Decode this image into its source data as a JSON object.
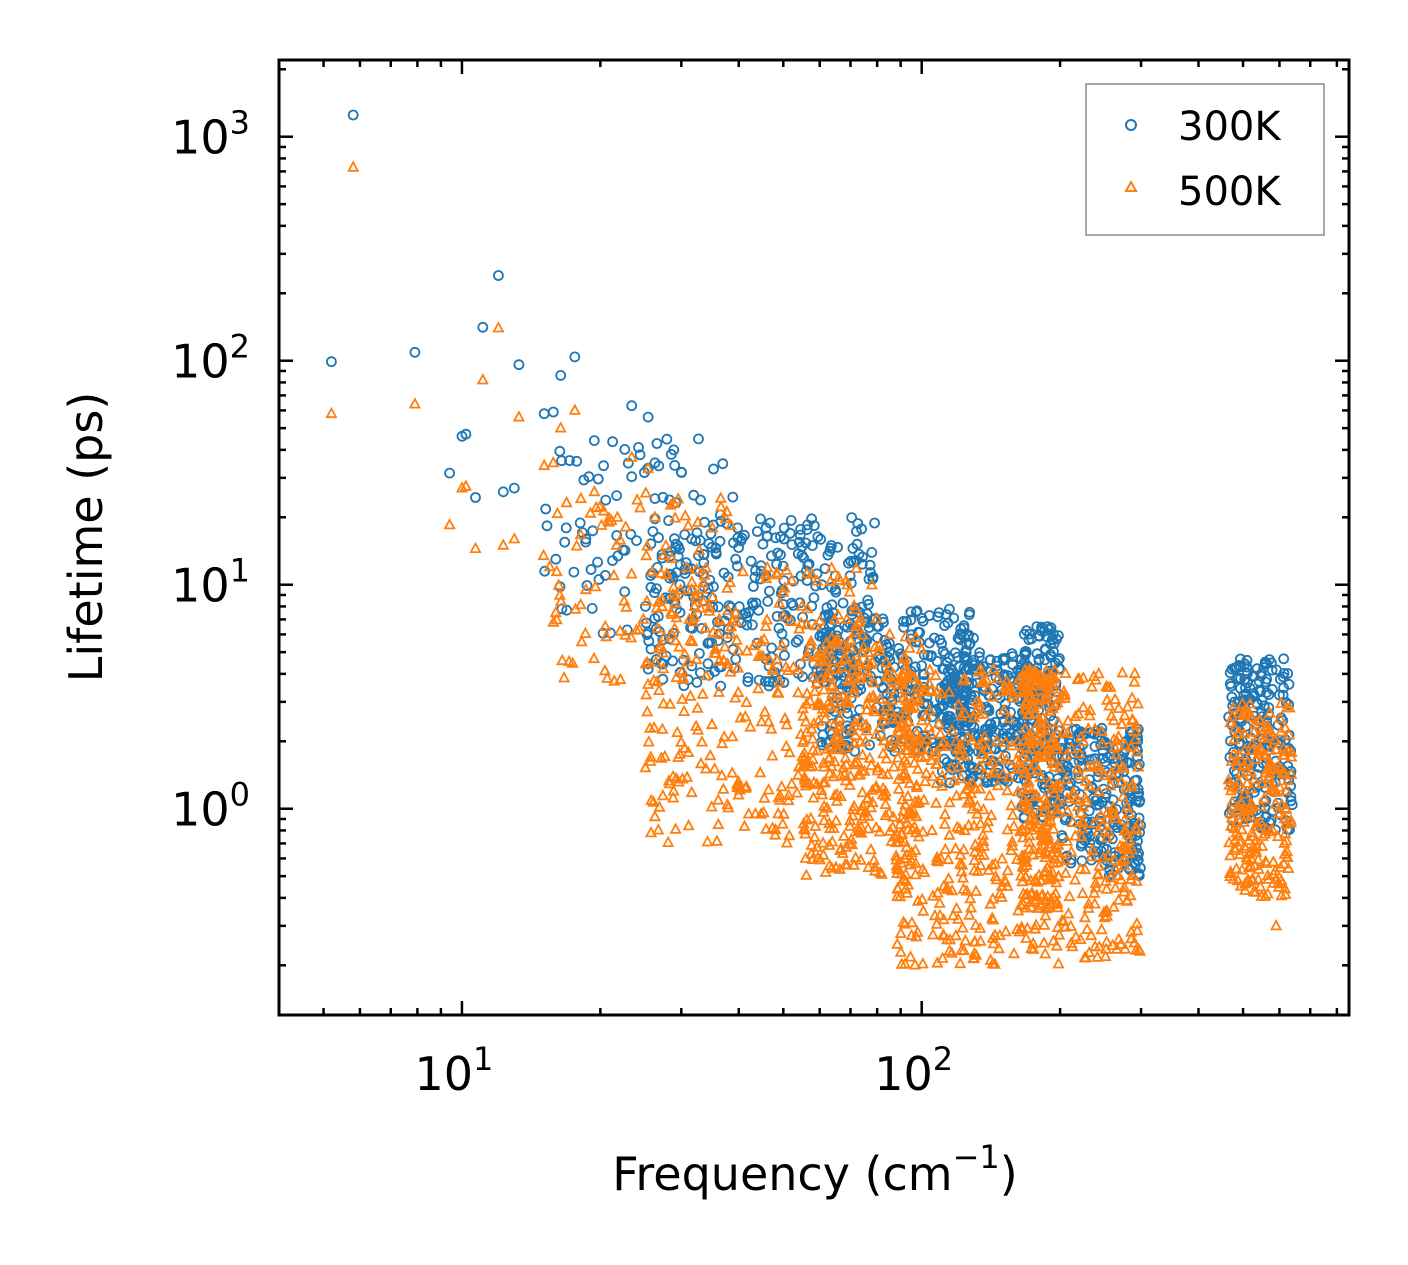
{
  "chart_data": {
    "type": "scatter",
    "title": "",
    "xlabel": "Frequency (cm",
    "xlabel_sup": "−1",
    "xlabel_end": ")",
    "ylabel": "Lifetime (ps)",
    "xscale": "log",
    "yscale": "log",
    "xlim": [
      4,
      850
    ],
    "ylim": [
      0.12,
      2200
    ],
    "x_ticks": [
      {
        "value": 10,
        "base": "10",
        "exp": "1"
      },
      {
        "value": 100,
        "base": "10",
        "exp": "2"
      }
    ],
    "y_ticks": [
      {
        "value": 1,
        "base": "10",
        "exp": "0"
      },
      {
        "value": 10,
        "base": "10",
        "exp": "1"
      },
      {
        "value": 100,
        "base": "10",
        "exp": "2"
      },
      {
        "value": 1000,
        "base": "10",
        "exp": "3"
      }
    ],
    "legend_position": "top-right",
    "series": [
      {
        "name": "300K",
        "marker": "circle",
        "color": "#1f77b4",
        "points": [
          [
            5.2,
            99
          ],
          [
            5.8,
            1250
          ],
          [
            7.9,
            109
          ],
          [
            9.4,
            31.5
          ],
          [
            10.0,
            46
          ],
          [
            10.2,
            47
          ],
          [
            10.7,
            24.5
          ],
          [
            11.1,
            141
          ],
          [
            12.0,
            240
          ],
          [
            12.3,
            26
          ],
          [
            13.0,
            27
          ],
          [
            13.3,
            96
          ],
          [
            15.1,
            58
          ],
          [
            15.8,
            59
          ],
          [
            16.0,
            13
          ],
          [
            16.4,
            86
          ],
          [
            17.6,
            104
          ],
          [
            18.6,
            16
          ],
          [
            19.4,
            44
          ],
          [
            20.5,
            11
          ],
          [
            21.7,
            25
          ],
          [
            23.4,
            63
          ],
          [
            24.4,
            38
          ],
          [
            25.4,
            56
          ],
          [
            26.3,
            35
          ],
          [
            28.9,
            40
          ],
          [
            31.6,
            16
          ],
          [
            33.7,
            19
          ],
          [
            39.4,
            13
          ],
          [
            45.8,
            11
          ],
          [
            50.2,
            16
          ],
          [
            54.9,
            13.5
          ],
          [
            60.6,
            10
          ],
          [
            64.9,
            9.5
          ],
          [
            85.1,
            5.0
          ],
          [
            125,
            5.0
          ],
          [
            178,
            6.5
          ],
          [
            185,
            6.2
          ]
        ],
        "clusters": [
          [
            15,
            40,
            6,
            45,
            90
          ],
          [
            25,
            80,
            3.5,
            20,
            300
          ],
          [
            60,
            130,
            1.8,
            8,
            320
          ],
          [
            110,
            170,
            1.3,
            5.0,
            260
          ],
          [
            165,
            200,
            0.9,
            6.5,
            180
          ],
          [
            200,
            300,
            0.5,
            2.3,
            230
          ],
          [
            465,
            640,
            0.8,
            4.7,
            220
          ]
        ]
      },
      {
        "name": "500K",
        "marker": "triangle",
        "color": "#ff7f0e",
        "points": [
          [
            5.2,
            58
          ],
          [
            5.8,
            730
          ],
          [
            7.9,
            64
          ],
          [
            9.4,
            18.5
          ],
          [
            10.0,
            27
          ],
          [
            10.2,
            27.5
          ],
          [
            10.7,
            14.5
          ],
          [
            11.1,
            82
          ],
          [
            12.0,
            140
          ],
          [
            12.3,
            15
          ],
          [
            13.0,
            16
          ],
          [
            13.3,
            56
          ],
          [
            15.1,
            34
          ],
          [
            15.8,
            35
          ],
          [
            16.0,
            7.5
          ],
          [
            16.4,
            50
          ],
          [
            17.6,
            60
          ],
          [
            18.6,
            9.5
          ],
          [
            19.4,
            26
          ],
          [
            20.5,
            6.5
          ],
          [
            21.7,
            15
          ],
          [
            23.4,
            37
          ],
          [
            24.4,
            22
          ],
          [
            25.4,
            33
          ],
          [
            26.3,
            20
          ],
          [
            28.9,
            23
          ],
          [
            31.6,
            9.5
          ],
          [
            33.7,
            11
          ],
          [
            39.4,
            7.5
          ],
          [
            45.8,
            6.5
          ],
          [
            54.9,
            8
          ],
          [
            64.9,
            5.5
          ],
          [
            185,
            3.8
          ],
          [
            590,
            0.3
          ]
        ],
        "clusters": [
          [
            15,
            40,
            3.5,
            26,
            90
          ],
          [
            25,
            80,
            0.7,
            12,
            320
          ],
          [
            55,
            100,
            0.5,
            6,
            300
          ],
          [
            88,
            300,
            0.2,
            4.2,
            650
          ],
          [
            165,
            200,
            0.35,
            4.2,
            180
          ],
          [
            465,
            640,
            0.4,
            3.0,
            220
          ]
        ]
      }
    ]
  }
}
